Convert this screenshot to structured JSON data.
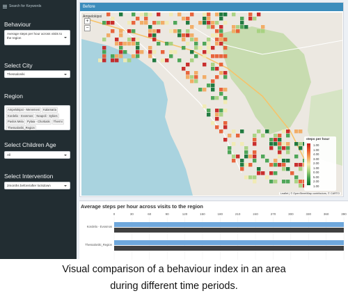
{
  "sidebar": {
    "toggle_label": "Search for Keywords",
    "behaviour": {
      "label": "Behaviour",
      "value": "Average steps per hour across visits to the region"
    },
    "city": {
      "label": "Select City",
      "value": "Thessaloniki"
    },
    "region": {
      "label": "Region",
      "chips": [
        "Ampelokipoi - Menemeni",
        "Kalamaria",
        "Kordelio - Evosmos",
        "Neapoli - Sykies",
        "Pavlos Mela",
        "Pylaia - Chortiatis",
        "Thermi",
        "Thessaloniki_Region"
      ]
    },
    "children_age": {
      "label": "Select Children Age",
      "value": "All"
    },
    "intervention": {
      "label": "Select Intervention",
      "value": "2months before/after lockdown"
    }
  },
  "map": {
    "header": "Before",
    "zoom_in": "+",
    "zoom_out": "−",
    "city_label": "Ampelokipoi",
    "legend": {
      "title": "steps per hour",
      "ticks": [
        "1.00",
        "1.00",
        "4.00",
        "3.00",
        "2.00",
        "1.00",
        "0.00",
        "5.00",
        "2.00",
        "1.00"
      ]
    },
    "attribution": "Leaflet | © OpenStreetMap contributors, © CARTO",
    "colors": {
      "high": "#c51b1b",
      "mid": "#f3a65a",
      "low": "#0b6e30",
      "sea": "#a9d3df",
      "land": "#ece8e1",
      "park": "#c8dcb0"
    }
  },
  "chart": {
    "title": "Average steps per hour across visits to the region"
  },
  "chart_data": {
    "type": "bar",
    "orientation": "horizontal",
    "x_ticks": [
      0,
      30,
      60,
      90,
      120,
      150,
      180,
      210,
      240,
      270,
      300,
      330,
      360,
      390
    ],
    "xlim": [
      0,
      390
    ],
    "categories": [
      "Kordelio - Evosmos",
      "Thessaloniki_Region"
    ],
    "series": [
      {
        "color": "#6fa8dc",
        "values": [
          390,
          390
        ]
      },
      {
        "color": "#404040",
        "values": [
          390,
          390
        ]
      }
    ]
  },
  "caption": {
    "line1": "Visual comparison of a behaviour index in an area",
    "line2": "during different time periods."
  }
}
